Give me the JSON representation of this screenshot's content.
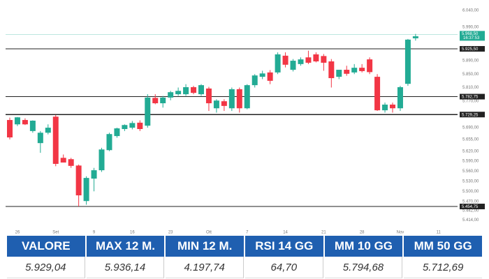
{
  "chart_data": {
    "type": "candlestick",
    "categories": [
      null,
      "26",
      null,
      null,
      null,
      null,
      "Set",
      null,
      null,
      null,
      null,
      "9",
      null,
      null,
      null,
      null,
      "16",
      null,
      null,
      null,
      null,
      "23",
      null,
      null,
      null,
      null,
      "Ott",
      null,
      null,
      null,
      null,
      "7",
      null,
      null,
      null,
      null,
      "14",
      null,
      null,
      null,
      null,
      "21",
      null,
      null,
      null,
      null,
      "28",
      null,
      null,
      null,
      null,
      "Nov",
      null,
      null,
      null,
      null,
      "11"
    ],
    "open": [
      5713,
      5700,
      5713,
      5680,
      5644,
      5675,
      5723,
      5600,
      5596,
      5577,
      5471,
      5538,
      5563,
      5623,
      5665,
      5686,
      5690,
      5705,
      5696,
      5779,
      5763,
      5780,
      5790,
      5790,
      5811,
      5790,
      5807,
      5748,
      5769,
      5748,
      5805,
      5748,
      5817,
      5842,
      5855,
      5855,
      5905,
      5863,
      5880,
      5900,
      5909,
      5904,
      5888,
      5842,
      5863,
      5855,
      5869,
      5894,
      5842,
      5742,
      5759,
      5748,
      5821,
      5957,
      null,
      null,
      null
    ],
    "high": [
      5720,
      5722,
      5718,
      5712,
      5680,
      5700,
      5728,
      5610,
      5600,
      5580,
      5545,
      5570,
      5630,
      5675,
      5690,
      5700,
      5710,
      5712,
      5790,
      5790,
      5785,
      5800,
      5810,
      5820,
      5815,
      5820,
      5812,
      5775,
      5775,
      5810,
      5810,
      5820,
      5850,
      5860,
      5862,
      5915,
      5915,
      5895,
      5900,
      5920,
      5915,
      5910,
      5895,
      5860,
      5875,
      5880,
      5880,
      5900,
      5850,
      5765,
      5765,
      5815,
      5955,
      5970,
      null,
      null,
      null
    ],
    "low": [
      5655,
      5695,
      5698,
      5675,
      5615,
      5670,
      5575,
      5590,
      5570,
      5455,
      5460,
      5500,
      5558,
      5620,
      5660,
      5680,
      5685,
      5680,
      5690,
      5760,
      5750,
      5772,
      5785,
      5785,
      5790,
      5785,
      5740,
      5735,
      5740,
      5740,
      5735,
      5745,
      5810,
      5835,
      5820,
      5850,
      5870,
      5858,
      5875,
      5880,
      5885,
      5860,
      5810,
      5835,
      5845,
      5850,
      5855,
      5850,
      5740,
      5735,
      5735,
      5740,
      5815,
      5950,
      null,
      null,
      null
    ],
    "close": [
      5661,
      5721,
      5700,
      5711,
      5675,
      5690,
      5582,
      5586,
      5576,
      5488,
      5540,
      5563,
      5625,
      5671,
      5688,
      5698,
      5704,
      5686,
      5780,
      5763,
      5780,
      5796,
      5800,
      5811,
      5794,
      5817,
      5763,
      5771,
      5755,
      5805,
      5748,
      5817,
      5846,
      5852,
      5830,
      5909,
      5878,
      5890,
      5894,
      5884,
      5888,
      5884,
      5838,
      5863,
      5851,
      5869,
      5859,
      5856,
      5742,
      5759,
      5748,
      5811,
      5953,
      5963,
      null,
      null,
      null
    ],
    "up_color": "#22ab94",
    "down_color": "#f23645",
    "ylim": [
      5384,
      6050.5
    ],
    "yticks": [
      {
        "value": 6040,
        "label": "6.040,00"
      },
      {
        "value": 5990,
        "label": "5.990,00"
      },
      {
        "value": 5890,
        "label": "5.890,00"
      },
      {
        "value": 5850,
        "label": "5.850,00"
      },
      {
        "value": 5810,
        "label": "5.810,00"
      },
      {
        "value": 5770,
        "label": "5.770,00"
      },
      {
        "value": 5690,
        "label": "5.690,00"
      },
      {
        "value": 5655,
        "label": "5.655,00"
      },
      {
        "value": 5620,
        "label": "5.620,00"
      },
      {
        "value": 5590,
        "label": "5.590,00"
      },
      {
        "value": 5560,
        "label": "5.560,00"
      },
      {
        "value": 5530,
        "label": "5.530,00"
      },
      {
        "value": 5500,
        "label": "5.500,00"
      },
      {
        "value": 5470,
        "label": "5.470,00"
      },
      {
        "value": 5442,
        "label": "5.442,00"
      },
      {
        "value": 5414,
        "label": "5.414,00"
      }
    ],
    "levels": [
      {
        "value": 5925.5,
        "label": "5.925,50"
      },
      {
        "value": 5782.75,
        "label": "5.782,75"
      },
      {
        "value": 5729.25,
        "label": "5.729,25"
      },
      {
        "value": 5454.75,
        "label": "5.454,75"
      }
    ],
    "level_color": "#222",
    "last_price": {
      "value": 5968.5,
      "label": "5.968,50",
      "time": "16:37:53"
    },
    "last_color": "#22ab94"
  },
  "table": {
    "headers": [
      "VALORE",
      "MAX 12 M.",
      "MIN 12 M.",
      "RSI 14 GG",
      "MM 10 GG",
      "MM 50 GG"
    ],
    "values": [
      "5.929,04",
      "5.936,14",
      "4.197,74",
      "64,70",
      "5.794,68",
      "5.712,69"
    ]
  }
}
